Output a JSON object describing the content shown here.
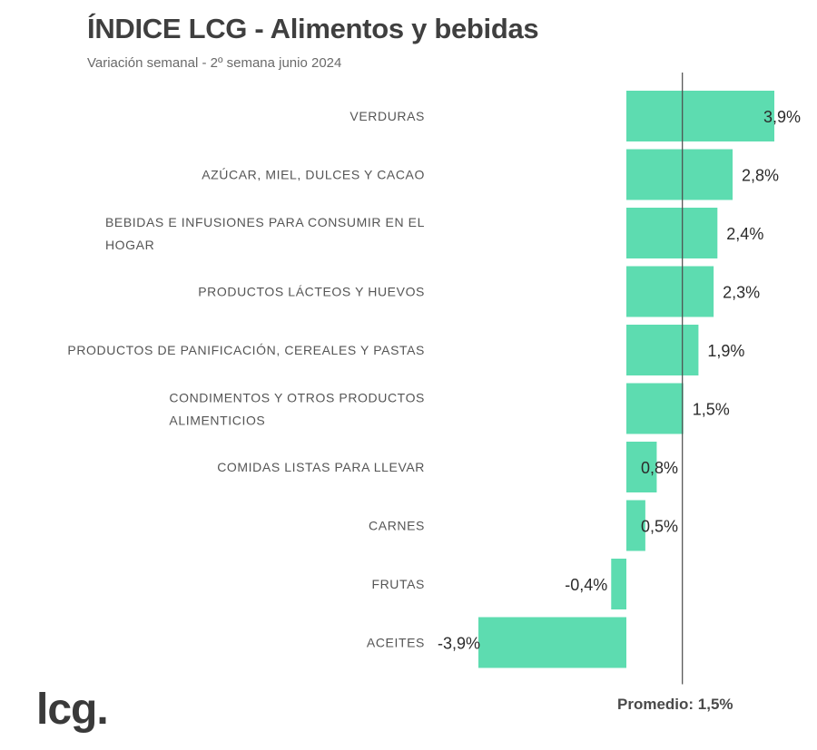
{
  "header": {
    "title": "ÍNDICE LCG - Alimentos y bebidas",
    "subtitle": "Variación semanal - 2º semana junio 2024"
  },
  "logo": {
    "text": "lcg."
  },
  "colors": {
    "bar": "#5ddcb0",
    "avg_line": "#4a4a4a"
  },
  "chart_data": {
    "type": "bar",
    "orientation": "horizontal",
    "categories": [
      [
        "VERDURAS"
      ],
      [
        "AZÚCAR, MIEL, DULCES Y CACAO"
      ],
      [
        "BEBIDAS E INFUSIONES PARA CONSUMIR EN EL",
        "HOGAR"
      ],
      [
        "PRODUCTOS LÁCTEOS Y HUEVOS"
      ],
      [
        "PRODUCTOS DE PANIFICACIÓN, CEREALES Y PASTAS"
      ],
      [
        "CONDIMENTOS Y OTROS PRODUCTOS",
        "ALIMENTICIOS"
      ],
      [
        "COMIDAS LISTAS PARA LLEVAR"
      ],
      [
        "CARNES"
      ],
      [
        "FRUTAS"
      ],
      [
        "ACEITES"
      ]
    ],
    "values": [
      3.9,
      2.8,
      2.4,
      2.3,
      1.9,
      1.5,
      0.8,
      0.5,
      -0.4,
      -3.9
    ],
    "value_labels": [
      "3,9%",
      "2,8%",
      "2,4%",
      "2,3%",
      "1,9%",
      "1,5%",
      "0,8%",
      "0,5%",
      "-0,4%",
      "-3,9%"
    ],
    "average": 1.5,
    "average_label": "Promedio: 1,5%",
    "xlim": [
      -3.9,
      3.9
    ],
    "grid": false,
    "legend": "none"
  }
}
